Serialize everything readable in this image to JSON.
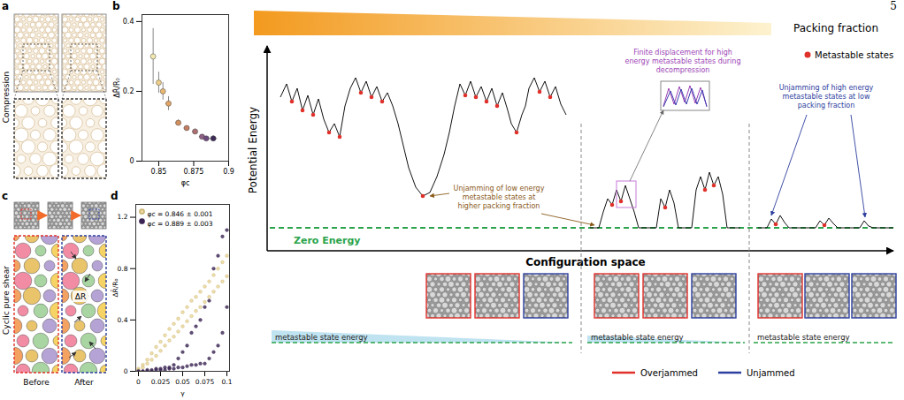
{
  "page_number": "5",
  "panel_a": {
    "letter": "a",
    "row_label": "Compression"
  },
  "panel_c": {
    "letter": "c",
    "row_label": "Cyclic pure shear",
    "image_labels": [
      "Before",
      "After"
    ],
    "annotation": "ΔR"
  },
  "chart_data": [
    {
      "letter": "b",
      "type": "scatter",
      "x_label": "φc",
      "y_label": "ΔR̄/R₀",
      "x": [
        0.846,
        0.85,
        0.853,
        0.857,
        0.864,
        0.87,
        0.876,
        0.881,
        0.884,
        0.889
      ],
      "values": [
        0.3,
        0.225,
        0.2,
        0.165,
        0.11,
        0.095,
        0.085,
        0.07,
        0.065,
        0.065
      ],
      "x_err": [
        0.001,
        0.001,
        0.001,
        0.002,
        0.002,
        0.002,
        0.002,
        0.002,
        0.002,
        0.003
      ],
      "y_err": [
        0.08,
        0.03,
        0.025,
        0.02,
        0.008,
        0.006,
        0.007,
        0.005,
        0.004,
        0.008
      ],
      "colors": [
        "#f3e9b0",
        "#efd08a",
        "#e9b872",
        "#e3a566",
        "#d58f5c",
        "#c47f62",
        "#ad6f72",
        "#8d5f84",
        "#6c4a7e",
        "#3e2a58"
      ],
      "marker": "circle",
      "xlim": [
        0.838,
        0.9
      ],
      "ylim": [
        0,
        0.42
      ],
      "xticks": [
        0.85,
        0.875,
        0.9
      ],
      "yticks": [
        0,
        0.2,
        0.4
      ]
    },
    {
      "letter": "d",
      "type": "scatter",
      "x_label": "γ",
      "y_label": "ΔR̄/R₀",
      "series": [
        {
          "name": "φc = 0.846 ± 0.001",
          "color": "#ecd99a",
          "x": [
            0,
            0.005,
            0.01,
            0.015,
            0.02,
            0.025,
            0.03,
            0.035,
            0.04,
            0.045,
            0.05,
            0.055,
            0.06,
            0.065,
            0.07,
            0.075,
            0.08,
            0.085,
            0.09,
            0.095,
            0.1,
            0,
            0.005,
            0.01,
            0.015,
            0.02,
            0.025,
            0.03,
            0.035,
            0.04,
            0.045,
            0.05,
            0.055,
            0.06,
            0.065,
            0.07,
            0.075,
            0.08,
            0.085,
            0.09,
            0.095,
            0.1
          ],
          "values": [
            0.02,
            0.05,
            0.09,
            0.14,
            0.19,
            0.23,
            0.28,
            0.33,
            0.37,
            0.41,
            0.46,
            0.5,
            0.55,
            0.58,
            0.62,
            0.66,
            0.7,
            0.75,
            0.8,
            0.85,
            0.9,
            0.01,
            0.03,
            0.06,
            0.09,
            0.12,
            0.16,
            0.2,
            0.24,
            0.27,
            0.31,
            0.35,
            0.39,
            0.43,
            0.47,
            0.5,
            0.54,
            0.58,
            0.62,
            0.66,
            0.7,
            0.74
          ]
        },
        {
          "name": "φc = 0.889 ± 0.003",
          "color": "#3b2553",
          "x": [
            0,
            0.005,
            0.01,
            0.015,
            0.02,
            0.025,
            0.03,
            0.035,
            0.04,
            0.045,
            0.05,
            0.055,
            0.06,
            0.065,
            0.07,
            0.075,
            0.08,
            0.085,
            0.09,
            0.095,
            0.1,
            0,
            0.005,
            0.01,
            0.015,
            0.02,
            0.025,
            0.03,
            0.035,
            0.04,
            0.045,
            0.05,
            0.055,
            0.06,
            0.065,
            0.07,
            0.075,
            0.08,
            0.085,
            0.09,
            0.095,
            0.1
          ],
          "values": [
            0,
            0,
            0.01,
            0.01,
            0.02,
            0.02,
            0.03,
            0.03,
            0.05,
            0.1,
            0.15,
            0.2,
            0.3,
            0.35,
            0.4,
            0.5,
            0.55,
            0.8,
            0.9,
            1.05,
            1.1,
            0,
            0,
            0,
            0,
            0.01,
            0.01,
            0.01,
            0.02,
            0.02,
            0.03,
            0.03,
            0.04,
            0.05,
            0.05,
            0.06,
            0.06,
            0.1,
            0.15,
            0.2,
            0.3,
            0.5
          ]
        }
      ],
      "legend": "upper left",
      "marker": "circle",
      "xlim": [
        -0.003,
        0.103
      ],
      "ylim": [
        0,
        1.3
      ],
      "xticks": [
        0,
        0.025,
        0.05,
        0.075,
        0.1
      ],
      "yticks": [
        0,
        0.4,
        0.8,
        1.2
      ]
    }
  ],
  "schematic": {
    "top_label": "Packing fraction",
    "y_label": "Potential Energy",
    "x_label": "Configuration space",
    "zero_label": "Zero Energy",
    "marker_legend": "Metastable states",
    "annotations": {
      "finite_displacement": "Finite displacement for high energy metastable states during decompression",
      "high_energy_unjamming": "Unjamming of high energy metastable states at low packing fraction",
      "low_energy_unjamming": "Unjamming of low energy metastable states at higher packing fraction"
    },
    "energy_bar_label": "metastable state energy",
    "state_legend": [
      {
        "name": "Overjammed",
        "color": "#e0302a"
      },
      {
        "name": "Unjammed",
        "color": "#2c3e9e"
      }
    ]
  }
}
